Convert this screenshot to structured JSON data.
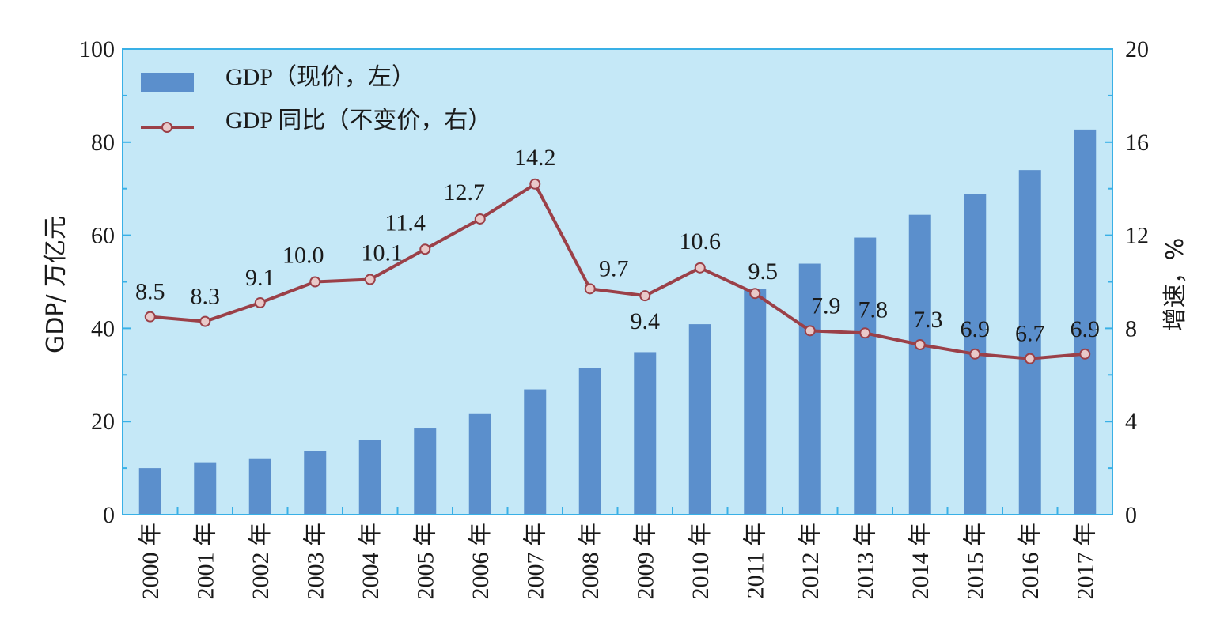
{
  "chart_data": {
    "type": "bar",
    "categories": [
      "2000 年",
      "2001 年",
      "2002 年",
      "2003 年",
      "2004 年",
      "2005 年",
      "2006 年",
      "2007 年",
      "2008 年",
      "2009 年",
      "2010 年",
      "2011 年",
      "2012 年",
      "2013 年",
      "2014 年",
      "2015 年",
      "2016 年",
      "2017 年"
    ],
    "series": [
      {
        "name": "GDP（现价，左）",
        "type": "bar",
        "axis": "left",
        "color": "#5b8fcc",
        "values": [
          10.0,
          11.1,
          12.1,
          13.7,
          16.1,
          18.5,
          21.6,
          26.9,
          31.5,
          34.9,
          40.9,
          48.4,
          53.9,
          59.5,
          64.4,
          68.9,
          74.0,
          82.7
        ]
      },
      {
        "name": "GDP 同比（不变价，右）",
        "type": "line",
        "axis": "right",
        "color": "#9b4048",
        "values": [
          8.5,
          8.3,
          9.1,
          10.0,
          10.1,
          11.4,
          12.7,
          14.2,
          9.7,
          9.4,
          10.6,
          9.5,
          7.9,
          7.8,
          7.3,
          6.9,
          6.7,
          6.9
        ],
        "labels": [
          "8.5",
          "8.3",
          "9.1",
          "10.0",
          "10.1",
          "11.4",
          "12.7",
          "14.2",
          "9.7",
          "9.4",
          "10.6",
          "9.5",
          "7.9",
          "7.8",
          "7.3",
          "6.9",
          "6.7",
          "6.9"
        ]
      }
    ],
    "ylabel": "GDP/ 万亿元",
    "ylabel_right": "增速，%",
    "ylim": [
      0,
      100
    ],
    "ylim_right": [
      0,
      20
    ],
    "yticks": [
      "0",
      "20",
      "40",
      "60",
      "80",
      "100"
    ],
    "yticks_right": [
      "0",
      "4",
      "8",
      "12",
      "16",
      "20"
    ],
    "legend": {
      "position": "top-left"
    },
    "grid": false,
    "plot_background": "#c5e8f7",
    "axis_color": "#39b0e6"
  }
}
